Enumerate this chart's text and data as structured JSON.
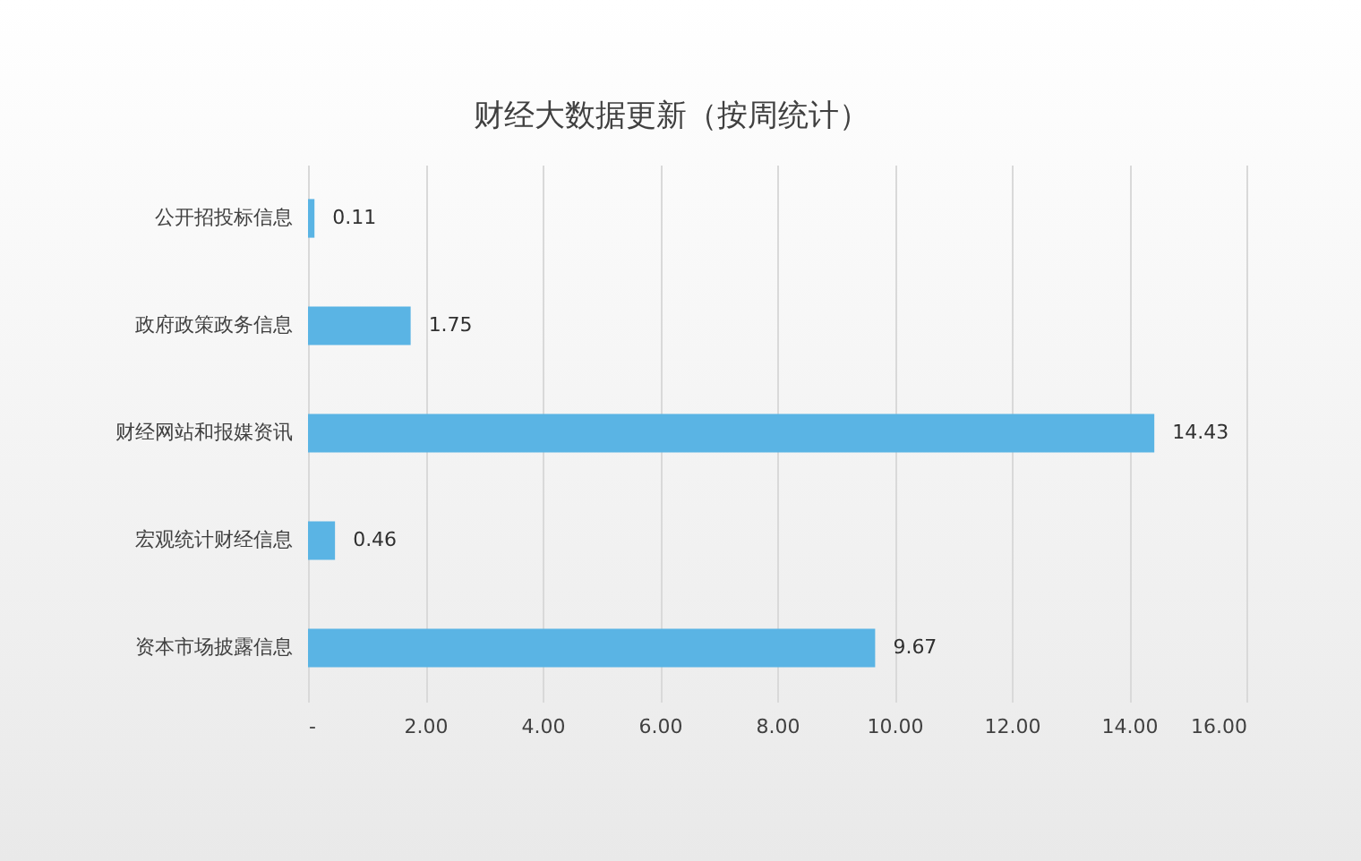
{
  "chart_data": {
    "type": "bar",
    "orientation": "horizontal",
    "title": "财经大数据更新（按周统计）",
    "categories": [
      "公开招投标信息",
      "政府政策政务信息",
      "财经网站和报媒资讯",
      "宏观统计财经信息",
      "资本市场披露信息"
    ],
    "values": [
      0.11,
      1.75,
      14.43,
      0.46,
      9.67
    ],
    "color": "#5ab4e4",
    "xlim": [
      0,
      16
    ],
    "xticks": [
      {
        "value": 0,
        "label": "-"
      },
      {
        "value": 2,
        "label": "2.00"
      },
      {
        "value": 4,
        "label": "4.00"
      },
      {
        "value": 6,
        "label": "6.00"
      },
      {
        "value": 8,
        "label": "8.00"
      },
      {
        "value": 10,
        "label": "10.00"
      },
      {
        "value": 12,
        "label": "12.00"
      },
      {
        "value": 14,
        "label": "14.00"
      },
      {
        "value": 16,
        "label": "16.00"
      }
    ],
    "grid": "x",
    "data_labels": true
  }
}
